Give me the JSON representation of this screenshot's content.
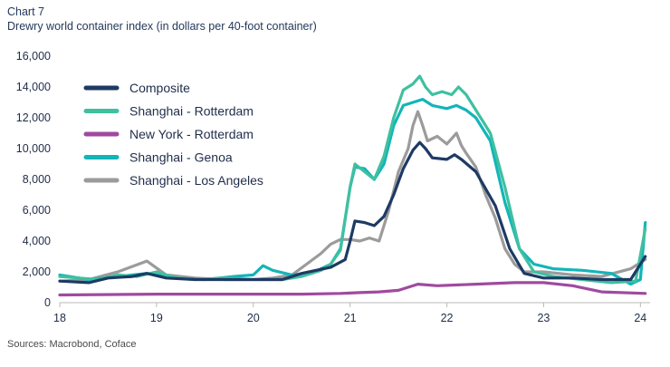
{
  "chart_label": "Chart 7",
  "source": "Sources: Macrobond, Coface",
  "chart_data": {
    "type": "line",
    "title": "Drewry world container index (in dollars per 40-foot container)",
    "xlabel": "",
    "ylabel": "",
    "xlim": [
      2018,
      2024.1
    ],
    "ylim": [
      0,
      16000
    ],
    "x_ticks": [
      2018,
      2019,
      2020,
      2021,
      2022,
      2023,
      2024
    ],
    "x_tick_labels": [
      "18",
      "19",
      "20",
      "21",
      "22",
      "23",
      "24"
    ],
    "y_ticks": [
      0,
      2000,
      4000,
      6000,
      8000,
      10000,
      12000,
      14000,
      16000
    ],
    "y_tick_labels": [
      "0",
      "2,000",
      "4,000",
      "6,000",
      "8,000",
      "10,000",
      "12,000",
      "14,000",
      "16,000"
    ],
    "grid": false,
    "legend_position": "top-left",
    "series": [
      {
        "name": "Composite",
        "color": "#1d3a63",
        "x": [
          2018.0,
          2018.3,
          2018.5,
          2018.75,
          2018.9,
          2019.1,
          2019.4,
          2019.7,
          2020.0,
          2020.3,
          2020.5,
          2020.65,
          2020.8,
          2020.95,
          2021.0,
          2021.05,
          2021.15,
          2021.25,
          2021.35,
          2021.45,
          2021.55,
          2021.65,
          2021.72,
          2021.78,
          2021.85,
          2022.0,
          2022.08,
          2022.15,
          2022.3,
          2022.5,
          2022.65,
          2022.8,
          2023.0,
          2023.3,
          2023.6,
          2023.9,
          2024.05
        ],
        "values": [
          1400,
          1300,
          1600,
          1700,
          1900,
          1600,
          1500,
          1500,
          1500,
          1500,
          1900,
          2100,
          2300,
          2800,
          4000,
          5300,
          5200,
          5000,
          5600,
          7000,
          8700,
          9900,
          10400,
          10000,
          9400,
          9300,
          9600,
          9300,
          8500,
          6300,
          3500,
          1900,
          1600,
          1600,
          1500,
          1500,
          3000
        ]
      },
      {
        "name": "Shanghai - Rotterdam",
        "color": "#3fc0a0",
        "x": [
          2018.0,
          2018.2,
          2018.4,
          2018.6,
          2018.8,
          2019.0,
          2019.2,
          2019.4,
          2019.7,
          2020.0,
          2020.3,
          2020.5,
          2020.7,
          2020.8,
          2020.9,
          2021.0,
          2021.05,
          2021.15,
          2021.25,
          2021.35,
          2021.45,
          2021.55,
          2021.65,
          2021.72,
          2021.78,
          2021.85,
          2021.95,
          2022.05,
          2022.12,
          2022.2,
          2022.3,
          2022.45,
          2022.6,
          2022.75,
          2022.9,
          2023.1,
          2023.4,
          2023.7,
          2023.95,
          2024.05
        ],
        "values": [
          1700,
          1600,
          1500,
          1800,
          1700,
          2000,
          1600,
          1500,
          1600,
          1500,
          1500,
          1700,
          2100,
          2500,
          3400,
          7500,
          9000,
          8500,
          8000,
          9500,
          12000,
          13800,
          14200,
          14700,
          14000,
          13500,
          13700,
          13500,
          14000,
          13500,
          12500,
          11000,
          7500,
          3500,
          2000,
          1700,
          1500,
          1300,
          1400,
          4800
        ]
      },
      {
        "name": "New York - Rotterdam",
        "color": "#a04a9e",
        "x": [
          2018.0,
          2019.0,
          2020.0,
          2020.5,
          2020.9,
          2021.1,
          2021.3,
          2021.5,
          2021.7,
          2021.9,
          2022.3,
          2022.7,
          2023.0,
          2023.3,
          2023.6,
          2024.05
        ],
        "values": [
          500,
          550,
          550,
          550,
          600,
          650,
          700,
          800,
          1200,
          1100,
          1200,
          1300,
          1300,
          1100,
          700,
          600
        ]
      },
      {
        "name": "Shanghai - Genoa",
        "color": "#13b5b8",
        "x": [
          2018.0,
          2018.3,
          2018.6,
          2018.9,
          2019.2,
          2019.5,
          2019.8,
          2020.0,
          2020.1,
          2020.2,
          2020.4,
          2020.6,
          2020.8,
          2020.9,
          2021.0,
          2021.05,
          2021.15,
          2021.25,
          2021.35,
          2021.45,
          2021.55,
          2021.65,
          2021.75,
          2021.85,
          2022.0,
          2022.1,
          2022.2,
          2022.3,
          2022.45,
          2022.6,
          2022.75,
          2022.9,
          2023.1,
          2023.4,
          2023.7,
          2023.9,
          2024.0,
          2024.05
        ],
        "values": [
          1800,
          1500,
          1700,
          1900,
          1600,
          1500,
          1700,
          1800,
          2400,
          2100,
          1800,
          1900,
          2500,
          3500,
          7500,
          8800,
          8700,
          8000,
          9000,
          11500,
          12800,
          13000,
          13200,
          12800,
          12600,
          12800,
          12500,
          12000,
          10500,
          6500,
          3500,
          2500,
          2200,
          2100,
          1900,
          1200,
          1500,
          5200
        ]
      },
      {
        "name": "Shanghai - Los Angeles",
        "color": "#9b9b9b",
        "x": [
          2018.0,
          2018.3,
          2018.6,
          2018.9,
          2019.1,
          2019.4,
          2019.7,
          2020.0,
          2020.2,
          2020.4,
          2020.55,
          2020.7,
          2020.8,
          2020.9,
          2021.0,
          2021.1,
          2021.2,
          2021.3,
          2021.4,
          2021.5,
          2021.6,
          2021.65,
          2021.7,
          2021.75,
          2021.8,
          2021.9,
          2022.0,
          2022.1,
          2022.15,
          2022.2,
          2022.3,
          2022.4,
          2022.5,
          2022.6,
          2022.7,
          2022.8,
          2023.0,
          2023.3,
          2023.6,
          2023.9,
          2024.05
        ],
        "values": [
          1400,
          1500,
          2000,
          2700,
          1800,
          1600,
          1500,
          1500,
          1600,
          1800,
          2500,
          3200,
          3800,
          4100,
          4100,
          4000,
          4200,
          4000,
          6000,
          8500,
          10000,
          11500,
          12400,
          11500,
          10500,
          10800,
          10300,
          11000,
          10200,
          9700,
          8800,
          7000,
          5500,
          3500,
          2500,
          2000,
          2000,
          1800,
          1700,
          2200,
          2800
        ]
      }
    ]
  }
}
